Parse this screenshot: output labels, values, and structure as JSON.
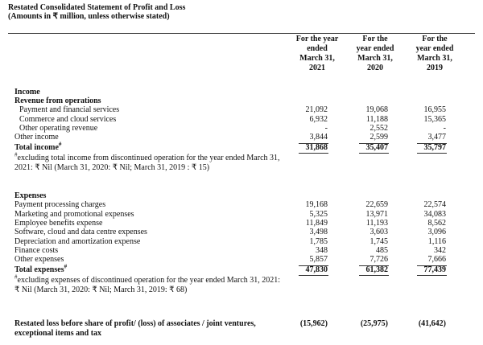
{
  "header": {
    "title": "Restated Consolidated Statement of Profit and Loss",
    "subtitle": "(Amounts in ₹ million, unless otherwise stated)"
  },
  "table": {
    "columns": [
      [
        "For the year",
        "ended",
        "March 31,",
        "2021"
      ],
      [
        "For the",
        "year ended",
        "March 31,",
        "2020"
      ],
      [
        "For the",
        "year ended",
        "March 31,",
        "2019"
      ]
    ],
    "sections": [
      {
        "heading": "Income",
        "groups": [
          {
            "label": "Revenue from operations",
            "rows": [
              {
                "label": "Payment and financial services",
                "values": [
                  "21,092",
                  "19,068",
                  "16,955"
                ]
              },
              {
                "label": "Commerce and cloud services",
                "values": [
                  "6,932",
                  "11,188",
                  "15,365"
                ]
              },
              {
                "label": "Other operating revenue",
                "values": [
                  "-",
                  "2,552",
                  "-"
                ]
              }
            ]
          }
        ],
        "rows": [
          {
            "label": "Other income",
            "values": [
              "3,844",
              "2,599",
              "3,477"
            ]
          }
        ],
        "total": {
          "label": "Total income",
          "mark": "#",
          "values": [
            "31,868",
            "35,407",
            "35,797"
          ]
        },
        "footnote": {
          "mark": "#",
          "text": "excluding total income from discontinued operation for the year ended March 31, 2021: ₹ Nil (March 31, 2020: ₹ Nil; March 31, 2019 : ₹ 15)"
        }
      },
      {
        "heading": "Expenses",
        "groups": [],
        "rows": [
          {
            "label": "Payment processing charges",
            "values": [
              "19,168",
              "22,659",
              "22,574"
            ]
          },
          {
            "label": "Marketing and promotional expenses",
            "values": [
              "5,325",
              "13,971",
              "34,083"
            ]
          },
          {
            "label": "Employee benefits expense",
            "values": [
              "11,849",
              "11,193",
              "8,562"
            ]
          },
          {
            "label": "Software, cloud and data centre expenses",
            "values": [
              "3,498",
              "3,603",
              "3,096"
            ]
          },
          {
            "label": "Depreciation and amortization expense",
            "values": [
              "1,785",
              "1,745",
              "1,116"
            ]
          },
          {
            "label": "Finance costs",
            "values": [
              "348",
              "485",
              "342"
            ]
          },
          {
            "label": "Other expenses",
            "values": [
              "5,857",
              "7,726",
              "7,666"
            ]
          }
        ],
        "total": {
          "label": "Total expenses",
          "mark": "#",
          "values": [
            "47,830",
            "61,382",
            "77,439"
          ]
        },
        "footnote": {
          "mark": "#",
          "text": "excluding expenses of discontinued operation for the year ended March 31, 2021: ₹ Nil (March 31, 2020: ₹ Nil; March 31, 2019: ₹ 68)"
        }
      }
    ],
    "final": {
      "label": "Restated loss before share of profit/ (loss) of associates / joint ventures, exceptional items and tax",
      "values": [
        "(15,962)",
        "(25,975)",
        "(41,642)"
      ]
    }
  }
}
